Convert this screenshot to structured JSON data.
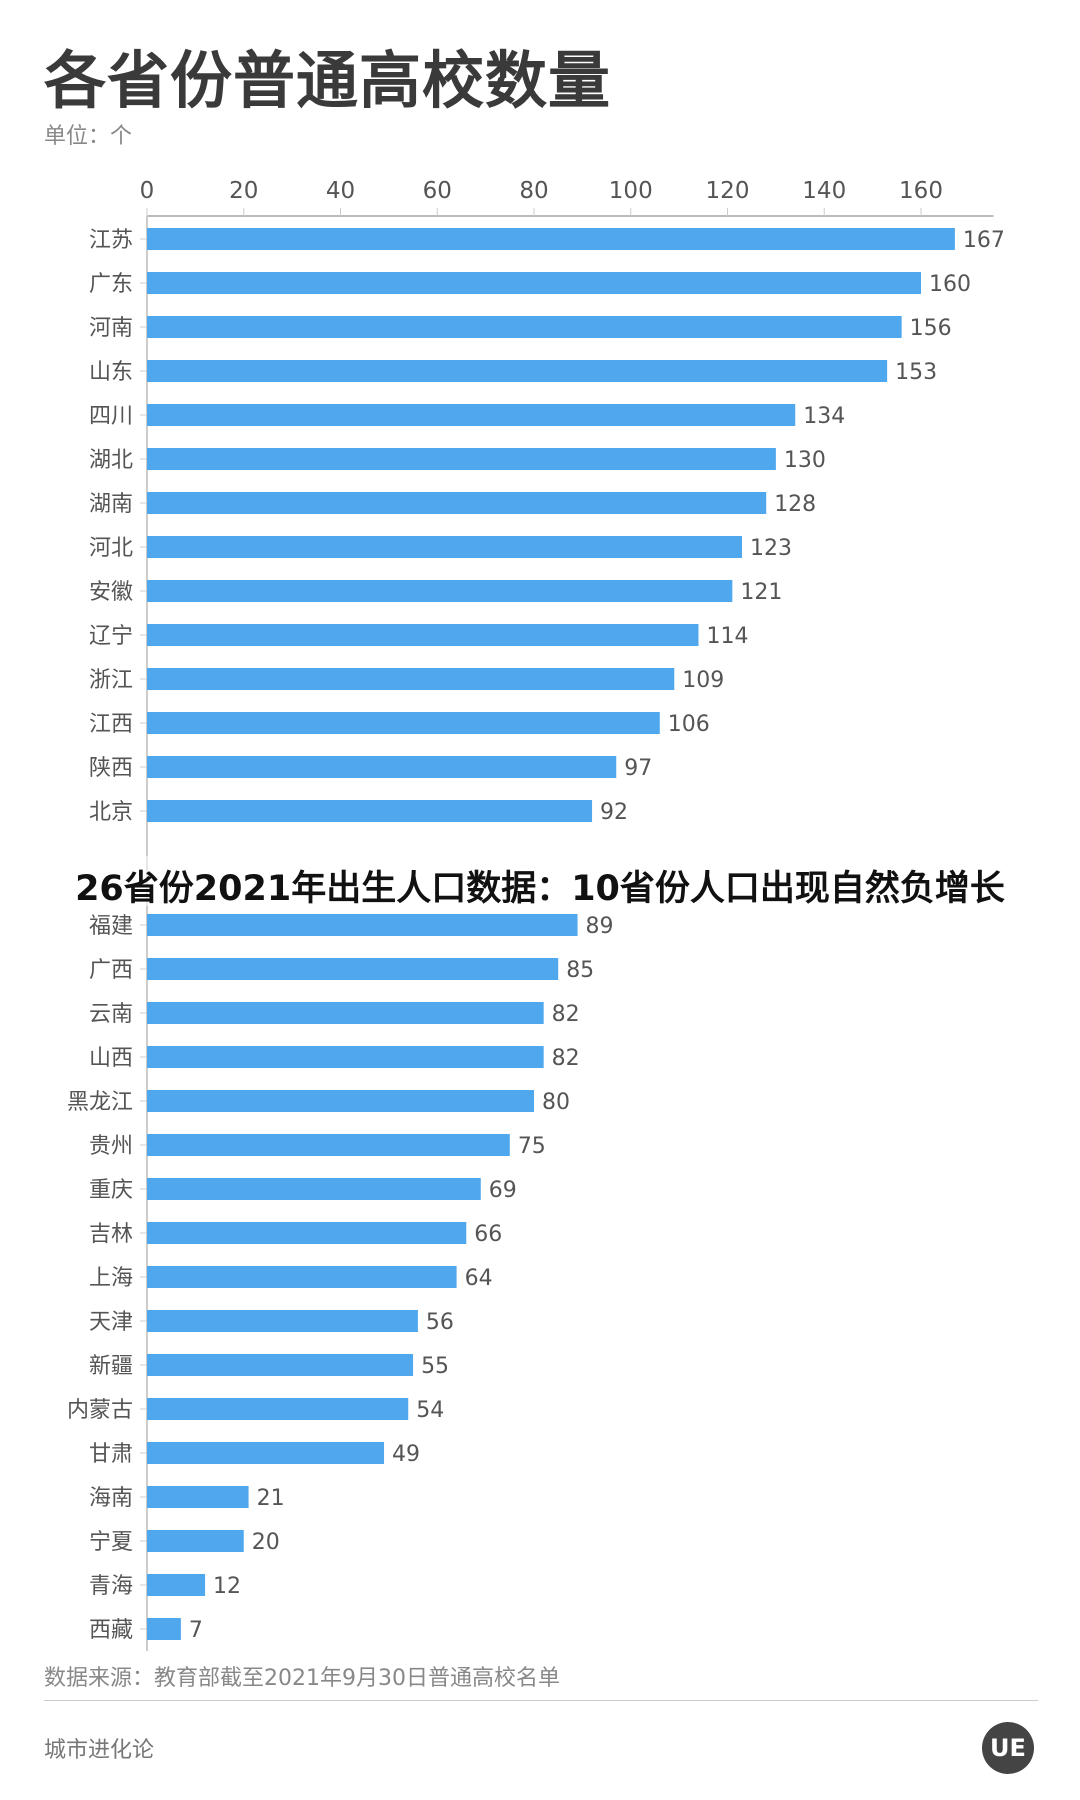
{
  "header": {
    "title": "各省份普通高校数量",
    "unit": "单位：个"
  },
  "banner": {
    "text": "26省份2021年出生人口数据：10省份人口出现自然负增长"
  },
  "footer": {
    "source": "数据来源：教育部截至2021年9月30日普通高校名单",
    "brand": "城市进化论",
    "logo_text": "UE"
  },
  "colors": {
    "bar": "#4fa7ee",
    "text": "#555555"
  },
  "chart_data": {
    "type": "bar",
    "orientation": "horizontal",
    "title": "各省份普通高校数量",
    "xlim": [
      0,
      170
    ],
    "xticks": [
      0,
      20,
      40,
      60,
      80,
      100,
      120,
      140,
      160
    ],
    "axis_position": "top",
    "grid": false,
    "categories": [
      "江苏",
      "广东",
      "河南",
      "山东",
      "四川",
      "湖北",
      "湖南",
      "河北",
      "安徽",
      "辽宁",
      "浙江",
      "江西",
      "陕西",
      "北京",
      "福建",
      "广西",
      "云南",
      "山西",
      "黑龙江",
      "贵州",
      "重庆",
      "吉林",
      "上海",
      "天津",
      "新疆",
      "内蒙古",
      "甘肃",
      "海南",
      "宁夏",
      "青海",
      "西藏"
    ],
    "values": [
      167,
      160,
      156,
      153,
      134,
      130,
      128,
      123,
      121,
      114,
      109,
      106,
      97,
      92,
      89,
      85,
      82,
      82,
      80,
      75,
      69,
      66,
      64,
      56,
      55,
      54,
      49,
      21,
      20,
      12,
      7
    ]
  }
}
